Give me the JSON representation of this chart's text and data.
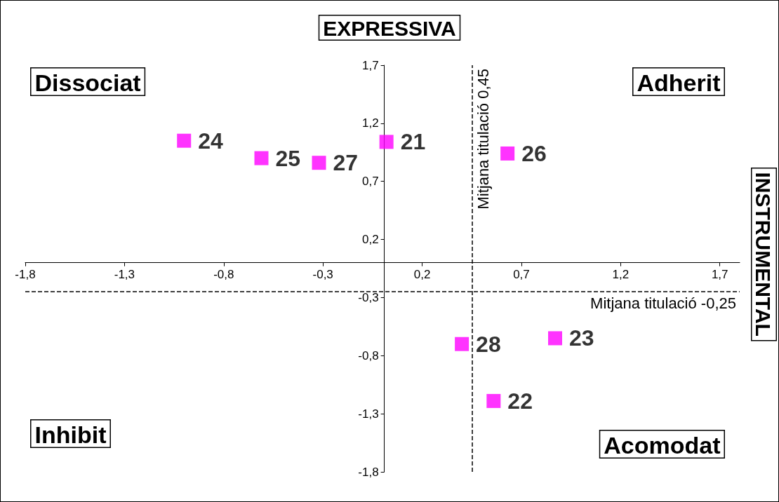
{
  "chart_data": {
    "type": "scatter",
    "xlim": [
      -1.8,
      1.8
    ],
    "ylim": [
      -1.8,
      1.7
    ],
    "xticks": [
      {
        "value": -1.8,
        "label": "-1,8"
      },
      {
        "value": -1.3,
        "label": "-1,3"
      },
      {
        "value": -0.8,
        "label": "-0,8"
      },
      {
        "value": -0.3,
        "label": "-0,3"
      },
      {
        "value": 0.2,
        "label": "0,2"
      },
      {
        "value": 0.7,
        "label": "0,7"
      },
      {
        "value": 1.2,
        "label": "1,2"
      },
      {
        "value": 1.7,
        "label": "1,7"
      }
    ],
    "yticks": [
      {
        "value": -1.8,
        "label": "-1,8"
      },
      {
        "value": -1.3,
        "label": "-1,3"
      },
      {
        "value": -0.8,
        "label": "-0,8"
      },
      {
        "value": -0.3,
        "label": "-0,3"
      },
      {
        "value": 0.2,
        "label": "0,2"
      },
      {
        "value": 0.7,
        "label": "0,7"
      },
      {
        "value": 1.2,
        "label": "1,2"
      },
      {
        "value": 1.7,
        "label": "1,7"
      }
    ],
    "series": [
      {
        "name": "21",
        "color": "#ff00ff",
        "x": [
          0.02
        ],
        "values": [
          1.04
        ]
      },
      {
        "name": "22",
        "color": "#ff00ff",
        "x": [
          0.56
        ],
        "values": [
          -1.19
        ]
      },
      {
        "name": "23",
        "color": "#ff00ff",
        "x": [
          0.87
        ],
        "values": [
          -0.65
        ]
      },
      {
        "name": "24",
        "color": "#ff00ff",
        "x": [
          -1.0
        ],
        "values": [
          1.05
        ]
      },
      {
        "name": "25",
        "color": "#ff00ff",
        "x": [
          -0.61
        ],
        "values": [
          0.9
        ]
      },
      {
        "name": "26",
        "color": "#ff00ff",
        "x": [
          0.63
        ],
        "values": [
          0.94
        ]
      },
      {
        "name": "27",
        "color": "#ff00ff",
        "x": [
          -0.32
        ],
        "values": [
          0.86
        ]
      },
      {
        "name": "28",
        "color": "#ff00ff",
        "x": [
          0.4
        ],
        "values": [
          -0.7
        ]
      }
    ],
    "ref_lines": [
      {
        "axis": "x",
        "value": 0.45,
        "label": "Mitjana titulació 0,45",
        "line_style": "dashed",
        "color": "#000000"
      },
      {
        "axis": "y",
        "value": -0.25,
        "label": "Mitjana titulació -0,25",
        "line_style": "dashed",
        "color": "#000000"
      }
    ],
    "annotations": [
      "Dissociat",
      "Adherit",
      "Inhibit",
      "Acomodat",
      "EXPRESSIVA",
      "INSTRUMENTAL"
    ],
    "marker": "square",
    "grid": false
  }
}
